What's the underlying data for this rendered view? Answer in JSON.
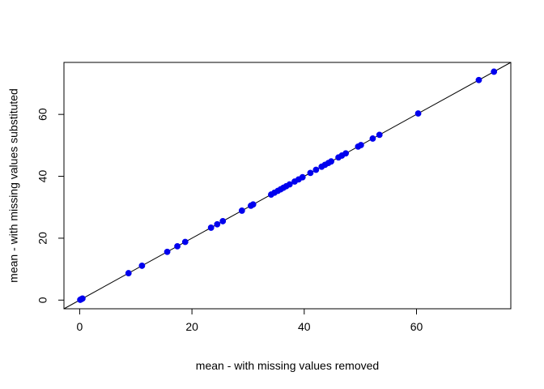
{
  "chart_data": {
    "type": "scatter",
    "xlabel": "mean - with missing values removed",
    "ylabel": "mean - with missing values substituted",
    "xlim": [
      -2.8,
      76.8
    ],
    "ylim": [
      -2.8,
      76.8
    ],
    "x_ticks": [
      0,
      20,
      40,
      60
    ],
    "y_ticks": [
      0,
      20,
      40,
      60
    ],
    "grid": false,
    "reference_line": {
      "type": "identity",
      "slope": 1,
      "intercept": 0,
      "color": "#000000"
    },
    "point_color": "#0000ee",
    "points": [
      [
        0.1,
        0.1
      ],
      [
        0.3,
        0.3
      ],
      [
        0.5,
        0.5
      ],
      [
        8.7,
        8.7
      ],
      [
        11.1,
        11.1
      ],
      [
        15.6,
        15.6
      ],
      [
        17.4,
        17.4
      ],
      [
        18.8,
        18.8
      ],
      [
        23.4,
        23.4
      ],
      [
        24.5,
        24.5
      ],
      [
        25.5,
        25.5
      ],
      [
        28.9,
        28.9
      ],
      [
        30.5,
        30.5
      ],
      [
        30.9,
        30.9
      ],
      [
        34.1,
        34.1
      ],
      [
        34.7,
        34.7
      ],
      [
        35.3,
        35.3
      ],
      [
        35.8,
        35.8
      ],
      [
        36.3,
        36.3
      ],
      [
        36.8,
        36.8
      ],
      [
        37.4,
        37.4
      ],
      [
        38.3,
        38.3
      ],
      [
        39.0,
        39.0
      ],
      [
        39.7,
        39.7
      ],
      [
        41.1,
        41.1
      ],
      [
        42.1,
        42.1
      ],
      [
        43.1,
        43.1
      ],
      [
        43.7,
        43.7
      ],
      [
        44.3,
        44.3
      ],
      [
        44.8,
        44.8
      ],
      [
        46.1,
        46.1
      ],
      [
        46.7,
        46.7
      ],
      [
        47.4,
        47.4
      ],
      [
        49.6,
        49.6
      ],
      [
        50.1,
        50.1
      ],
      [
        52.2,
        52.2
      ],
      [
        53.4,
        53.4
      ],
      [
        60.3,
        60.3
      ],
      [
        71.1,
        71.1
      ],
      [
        73.8,
        73.8
      ]
    ]
  }
}
